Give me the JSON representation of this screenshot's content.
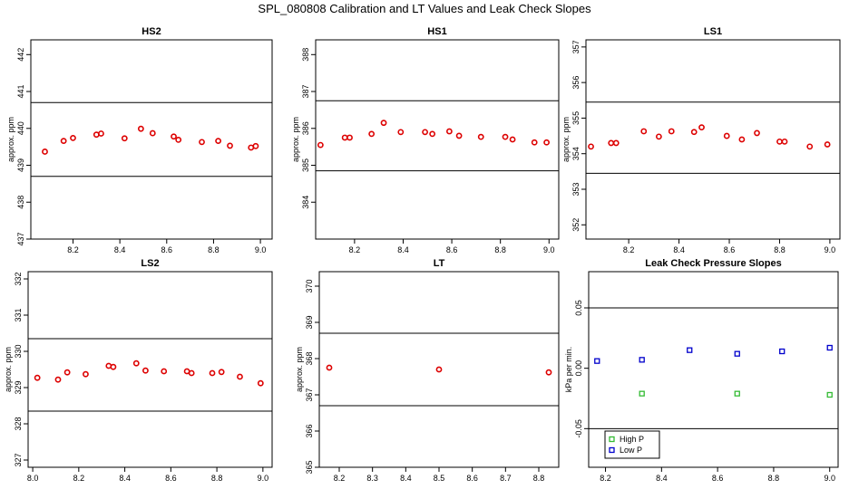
{
  "page": {
    "title": "SPL_080808  Calibration and LT Values and Leak Check Slopes"
  },
  "chart_data": [
    {
      "type": "scatter",
      "title": "HS2",
      "xlabel": "",
      "ylabel": "approx. ppm",
      "xlim": [
        8.02,
        9.05
      ],
      "ylim": [
        437,
        442.4
      ],
      "xticks": [
        8.2,
        8.4,
        8.6,
        8.8,
        9.0
      ],
      "yticks": [
        437,
        438,
        439,
        440,
        441,
        442
      ],
      "hlines": [
        440.7,
        438.7
      ],
      "series": [
        {
          "color": "#dd0000",
          "x": [
            8.08,
            8.16,
            8.2,
            8.3,
            8.32,
            8.42,
            8.49,
            8.54,
            8.63,
            8.65,
            8.75,
            8.82,
            8.87,
            8.96,
            8.98
          ],
          "y": [
            439.37,
            439.66,
            439.74,
            439.83,
            439.86,
            439.73,
            439.99,
            439.87,
            439.78,
            439.69,
            439.63,
            439.66,
            439.53,
            439.48,
            439.52
          ]
        }
      ]
    },
    {
      "type": "scatter",
      "title": "HS1",
      "xlabel": "",
      "ylabel": "approx. ppm",
      "xlim": [
        8.04,
        9.04
      ],
      "ylim": [
        383,
        388.4
      ],
      "xticks": [
        8.2,
        8.4,
        8.6,
        8.8,
        9.0
      ],
      "yticks": [
        384,
        385,
        386,
        387,
        388
      ],
      "hlines": [
        386.75,
        384.85
      ],
      "series": [
        {
          "color": "#dd0000",
          "x": [
            8.06,
            8.16,
            8.18,
            8.27,
            8.32,
            8.39,
            8.49,
            8.52,
            8.59,
            8.63,
            8.72,
            8.82,
            8.85,
            8.94,
            8.99
          ],
          "y": [
            385.55,
            385.75,
            385.75,
            385.85,
            386.15,
            385.9,
            385.9,
            385.85,
            385.92,
            385.8,
            385.77,
            385.77,
            385.7,
            385.62,
            385.62
          ]
        }
      ]
    },
    {
      "type": "scatter",
      "title": "LS1",
      "xlabel": "",
      "ylabel": "approx. ppm",
      "xlim": [
        8.03,
        9.04
      ],
      "ylim": [
        351.6,
        357.2
      ],
      "xticks": [
        8.2,
        8.4,
        8.6,
        8.8,
        9.0
      ],
      "yticks": [
        352,
        353,
        354,
        355,
        356,
        357
      ],
      "hlines": [
        355.45,
        353.45
      ],
      "series": [
        {
          "color": "#dd0000",
          "x": [
            8.05,
            8.13,
            8.15,
            8.26,
            8.32,
            8.37,
            8.46,
            8.49,
            8.59,
            8.65,
            8.71,
            8.8,
            8.82,
            8.92,
            8.99
          ],
          "y": [
            354.2,
            354.3,
            354.3,
            354.63,
            354.48,
            354.63,
            354.61,
            354.74,
            354.5,
            354.4,
            354.58,
            354.34,
            354.34,
            354.2,
            354.26
          ]
        }
      ]
    },
    {
      "type": "scatter",
      "title": "LS2",
      "xlabel": "",
      "ylabel": "approx. ppm",
      "xlim": [
        7.98,
        9.04
      ],
      "ylim": [
        326.8,
        332.2
      ],
      "xticks": [
        8.0,
        8.2,
        8.4,
        8.6,
        8.8,
        9.0
      ],
      "yticks": [
        327,
        328,
        329,
        330,
        331,
        332
      ],
      "hlines": [
        330.35,
        328.35
      ],
      "series": [
        {
          "color": "#dd0000",
          "x": [
            8.02,
            8.11,
            8.15,
            8.23,
            8.33,
            8.35,
            8.45,
            8.49,
            8.57,
            8.67,
            8.69,
            8.78,
            8.82,
            8.9,
            8.99
          ],
          "y": [
            329.27,
            329.22,
            329.42,
            329.37,
            329.6,
            329.57,
            329.67,
            329.47,
            329.45,
            329.45,
            329.4,
            329.4,
            329.43,
            329.3,
            329.12
          ]
        }
      ]
    },
    {
      "type": "scatter",
      "title": "LT",
      "xlabel": "",
      "ylabel": "approx. ppm",
      "xlim": [
        8.14,
        8.86
      ],
      "ylim": [
        365,
        370.4
      ],
      "xticks": [
        8.2,
        8.3,
        8.4,
        8.5,
        8.6,
        8.7,
        8.8
      ],
      "yticks": [
        365,
        366,
        367,
        368,
        369,
        370
      ],
      "hlines": [
        368.7,
        366.7
      ],
      "series": [
        {
          "color": "#dd0000",
          "x": [
            8.17,
            8.5,
            8.83
          ],
          "y": [
            367.75,
            367.7,
            367.62
          ]
        }
      ]
    },
    {
      "type": "scatter",
      "title": "Leak Check Pressure Slopes",
      "xlabel": "",
      "ylabel": "kPa per min.",
      "xlim": [
        8.14,
        9.03
      ],
      "ylim": [
        -0.082,
        0.08
      ],
      "xticks": [
        8.2,
        8.4,
        8.6,
        8.8,
        9.0
      ],
      "yticks": [
        -0.05,
        0.0,
        0.05
      ],
      "ytick_labels": [
        "-0.05",
        "0.00",
        "0.05"
      ],
      "hlines": [
        0.05,
        -0.05
      ],
      "legend_position": "bottom-left",
      "series": [
        {
          "name": "High P",
          "color": "#33bb33",
          "x": [
            8.33,
            8.67,
            9.0
          ],
          "y": [
            -0.021,
            -0.021,
            -0.022
          ]
        },
        {
          "name": "Low P",
          "color": "#0000cc",
          "x": [
            8.17,
            8.33,
            8.5,
            8.67,
            8.83,
            9.0
          ],
          "y": [
            0.006,
            0.007,
            0.015,
            0.012,
            0.014,
            0.017
          ]
        }
      ]
    }
  ]
}
